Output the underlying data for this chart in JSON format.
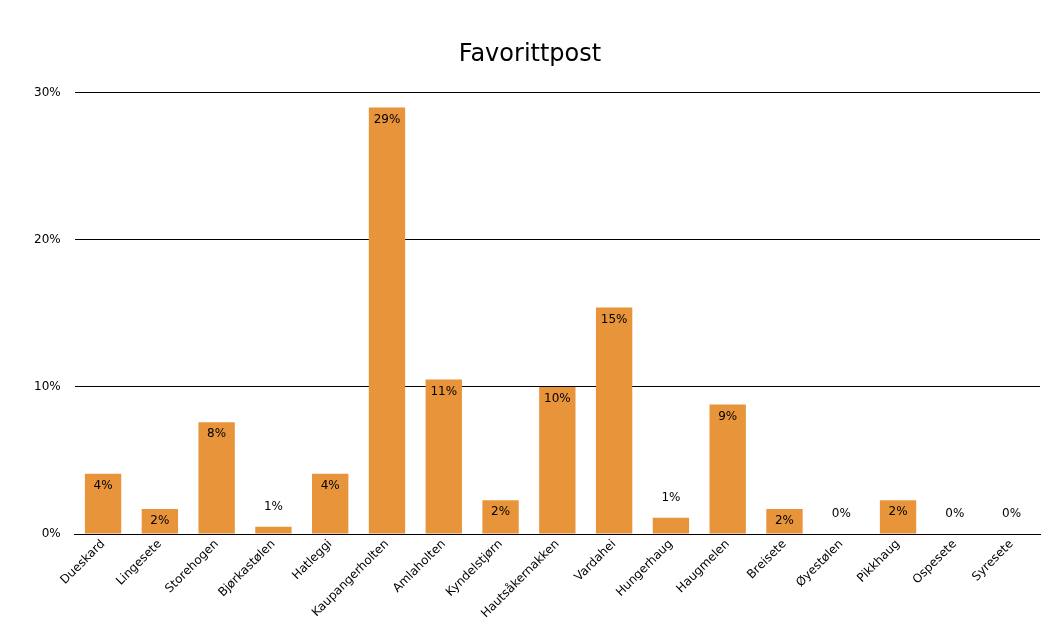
{
  "chart_data": {
    "type": "bar",
    "title": "Favorittpost",
    "categories": [
      "Dueskard",
      "Lingesete",
      "Storehogen",
      "Bjørkastølen",
      "Hatleggi",
      "Kaupangerholten",
      "Amlaholten",
      "Kyndelstjørn",
      "Hautsåkernakken",
      "Vardahei",
      "Hungerhaug",
      "Haugmelen",
      "Breisete",
      "Øyestølen",
      "Pikkhaug",
      "Ospesete",
      "Syresete"
    ],
    "values": [
      4.1,
      1.7,
      7.6,
      0.5,
      4.1,
      29.0,
      10.5,
      2.3,
      10.0,
      15.4,
      1.1,
      8.8,
      1.7,
      0,
      2.3,
      0,
      0
    ],
    "value_labels": [
      "4%",
      "2%",
      "8%",
      "1%",
      "4%",
      "29%",
      "11%",
      "2%",
      "10%",
      "15%",
      "1%",
      "9%",
      "2%",
      "0%",
      "2%",
      "0%",
      "0%"
    ],
    "color": "#e8943a",
    "ylim": [
      0,
      30
    ],
    "yticks": [
      {
        "value": 0,
        "label": "0%"
      },
      {
        "value": 10,
        "label": "10%"
      },
      {
        "value": 20,
        "label": "20%"
      },
      {
        "value": 30,
        "label": "30%"
      }
    ],
    "grid": "y",
    "legend": false
  }
}
